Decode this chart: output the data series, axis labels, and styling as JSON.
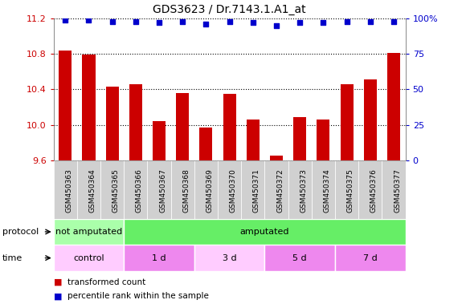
{
  "title": "GDS3623 / Dr.7143.1.A1_at",
  "samples": [
    "GSM450363",
    "GSM450364",
    "GSM450365",
    "GSM450366",
    "GSM450367",
    "GSM450368",
    "GSM450369",
    "GSM450370",
    "GSM450371",
    "GSM450372",
    "GSM450373",
    "GSM450374",
    "GSM450375",
    "GSM450376",
    "GSM450377"
  ],
  "bar_values": [
    10.84,
    10.79,
    10.43,
    10.46,
    10.04,
    10.36,
    9.97,
    10.35,
    10.06,
    9.65,
    10.09,
    10.06,
    10.46,
    10.51,
    10.81
  ],
  "dot_values": [
    99,
    99,
    98,
    98,
    97,
    98,
    96,
    98,
    97,
    95,
    97,
    97,
    98,
    98,
    98
  ],
  "ylim_left": [
    9.6,
    11.2
  ],
  "ylim_right": [
    0,
    100
  ],
  "yticks_left": [
    9.6,
    10.0,
    10.4,
    10.8,
    11.2
  ],
  "yticks_right": [
    0,
    25,
    50,
    75,
    100
  ],
  "bar_color": "#cc0000",
  "dot_color": "#0000cc",
  "chart_bg_color": "#ffffff",
  "tick_area_bg": "#d0d0d0",
  "protocol_labels": [
    {
      "label": "not amputated",
      "start": 0,
      "end": 3,
      "color": "#aaffaa"
    },
    {
      "label": "amputated",
      "start": 3,
      "end": 15,
      "color": "#66ee66"
    }
  ],
  "time_labels": [
    {
      "label": "control",
      "start": 0,
      "end": 3,
      "color": "#ffccff"
    },
    {
      "label": "1 d",
      "start": 3,
      "end": 6,
      "color": "#ee88ee"
    },
    {
      "label": "3 d",
      "start": 6,
      "end": 9,
      "color": "#ffccff"
    },
    {
      "label": "5 d",
      "start": 9,
      "end": 12,
      "color": "#ee88ee"
    },
    {
      "label": "7 d",
      "start": 12,
      "end": 15,
      "color": "#ee88ee"
    }
  ],
  "legend_bar_label": "transformed count",
  "legend_dot_label": "percentile rank within the sample",
  "protocol_row_label": "protocol",
  "time_row_label": "time",
  "right_axis_suffix": "%"
}
